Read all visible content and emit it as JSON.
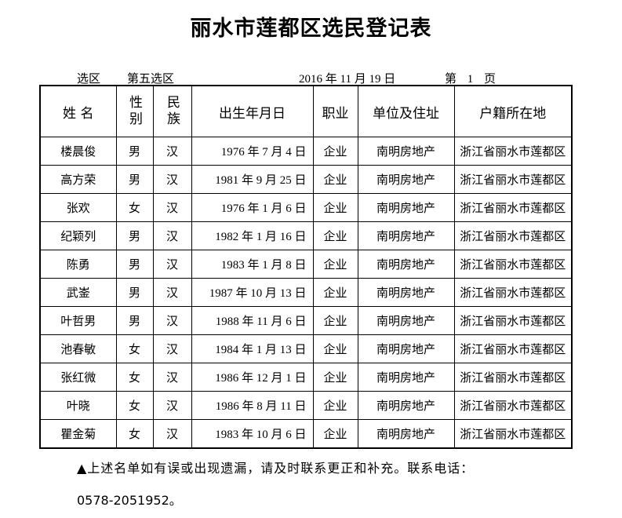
{
  "title": "丽水市莲都区选民登记表",
  "district_label": "选区",
  "district_value": "第五选区",
  "date": "2016 年 11 月 19 日",
  "page": "第 1 页",
  "headers": [
    "姓 名",
    "性别",
    "民族",
    "出生年月日",
    "职业",
    "单位及住址",
    "户籍所在地"
  ],
  "rows": [
    [
      "楼晨俊",
      "男",
      "汉",
      "1976 年 7 月 4 日",
      "企业",
      "南明房地产",
      "浙江省丽水市莲都区"
    ],
    [
      "高方荣",
      "男",
      "汉",
      "1981 年 9 月 25 日",
      "企业",
      "南明房地产",
      "浙江省丽水市莲都区"
    ],
    [
      "张欢",
      "女",
      "汉",
      "1976 年 1 月 6 日",
      "企业",
      "南明房地产",
      "浙江省丽水市莲都区"
    ],
    [
      "纪颖列",
      "男",
      "汉",
      "1982 年 1 月 16 日",
      "企业",
      "南明房地产",
      "浙江省丽水市莲都区"
    ],
    [
      "陈勇",
      "男",
      "汉",
      "1983 年 1 月 8 日",
      "企业",
      "南明房地产",
      "浙江省丽水市莲都区"
    ],
    [
      "武崟",
      "男",
      "汉",
      "1987 年 10 月 13 日",
      "企业",
      "南明房地产",
      "浙江省丽水市莲都区"
    ],
    [
      "叶哲男",
      "男",
      "汉",
      "1988 年 11 月 6 日",
      "企业",
      "南明房地产",
      "浙江省丽水市莲都区"
    ],
    [
      "池春敏",
      "女",
      "汉",
      "1984 年 1 月 13 日",
      "企业",
      "南明房地产",
      "浙江省丽水市莲都区"
    ],
    [
      "张红微",
      "女",
      "汉",
      "1986 年 12 月 1 日",
      "企业",
      "南明房地产",
      "浙江省丽水市莲都区"
    ],
    [
      "叶晓",
      "女",
      "汉",
      "1986 年 8 月 11 日",
      "企业",
      "南明房地产",
      "浙江省丽水市莲都区"
    ],
    [
      "瞿金菊",
      "女",
      "汉",
      "1983 年 10 月 6 日",
      "企业",
      "南明房地产",
      "浙江省丽水市莲都区"
    ]
  ],
  "note": "▲上述名单如有误或出现遗漏，请及时联系更正和补充。联系电话：",
  "phone": "0578-2051952。"
}
